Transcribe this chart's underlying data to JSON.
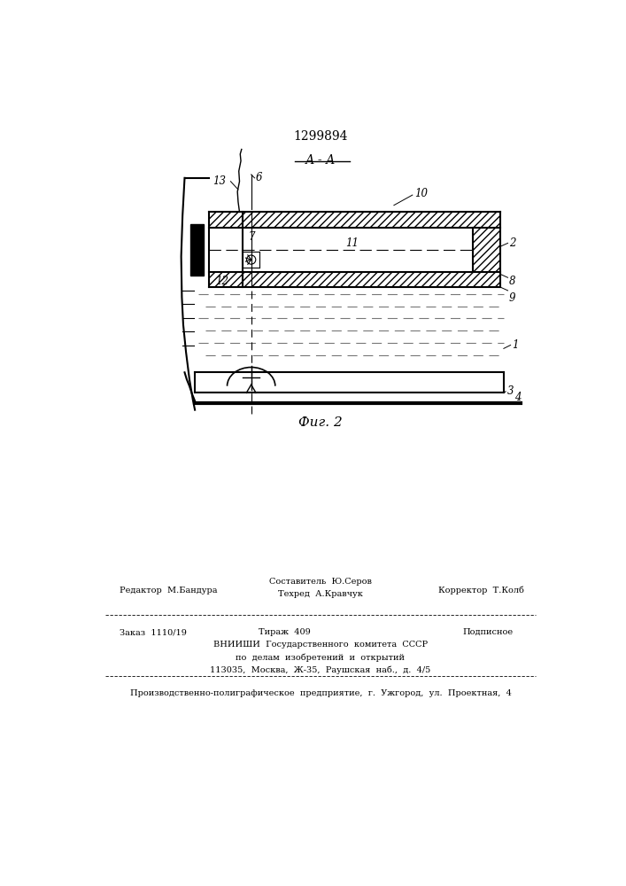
{
  "patent_number": "1299894",
  "fig_label": "Фиг. 2",
  "section_label": "А - А",
  "background_color": "#ffffff",
  "line_color": "#000000",
  "footer": {
    "line1_left": "Редактор  М.Бандура",
    "line1_center": "Составитель  Ю.Серов",
    "line1_right": "Корректор  Т.Колб",
    "line2_center": "Техред  А.Кравчук",
    "order": "Заказ  1110/19",
    "tirazh": "Тираж  409",
    "podpisnoe": "Подписное",
    "vniishi": "ВНИИШИ  Государственного  комитета  СССР",
    "po_delam": "по  делам  изобретений  и  открытий",
    "address": "113035,  Москва,  Ж-35,  Раушская  наб.,  д.  4/5",
    "proizv": "Производственно-полиграфическое  предприятие,  г.  Ужгород,  ул.  Проектная,  4"
  }
}
